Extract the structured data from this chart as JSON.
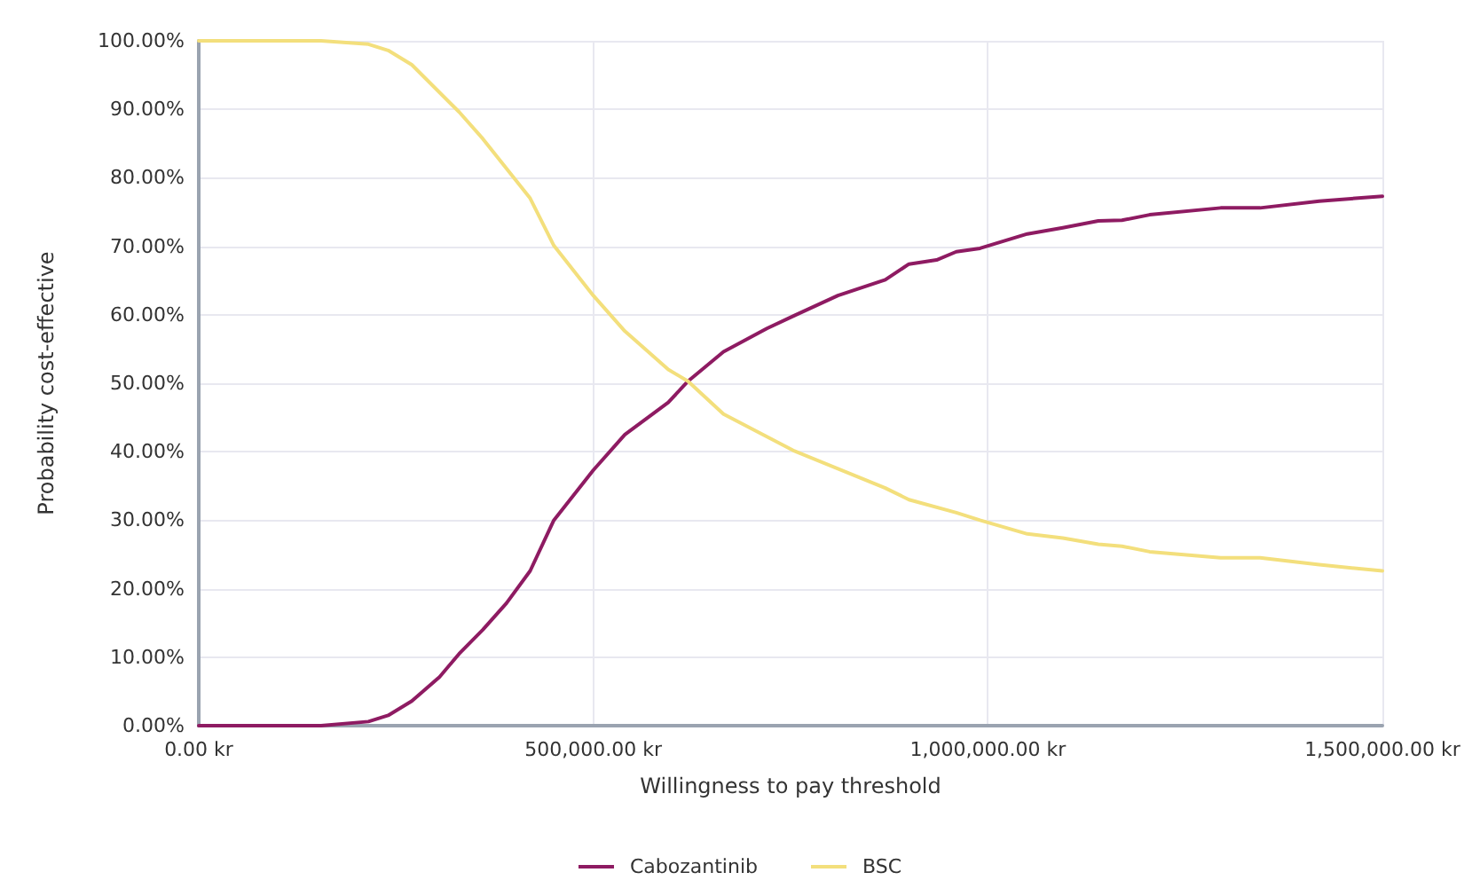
{
  "chart_data": {
    "type": "line",
    "xlabel": "Willingness to pay threshold",
    "ylabel": "Probability cost-effective",
    "series": [
      {
        "name": "Cabozantinib",
        "color": "#8e1b62",
        "x": [
          0,
          50000,
          100000,
          155000,
          215000,
          240000,
          270000,
          305000,
          330000,
          360000,
          390000,
          420000,
          450000,
          500000,
          540000,
          595000,
          620000,
          665000,
          720000,
          755000,
          810000,
          870000,
          900000,
          935000,
          960000,
          990000,
          1050000,
          1095000,
          1140000,
          1170000,
          1205000,
          1295000,
          1345000,
          1420000,
          1500000
        ],
        "values": [
          0,
          0,
          0,
          0,
          0.6,
          1.5,
          3.6,
          7.1,
          10.5,
          14,
          17.9,
          22.6,
          30,
          37.3,
          42.5,
          47.2,
          50.3,
          54.6,
          58,
          59.9,
          62.8,
          65.1,
          67.4,
          68,
          69.2,
          69.7,
          71.8,
          72.7,
          73.7,
          73.8,
          74.6,
          75.6,
          75.6,
          76.6,
          77.3
        ]
      },
      {
        "name": "BSC",
        "color": "#f3df7c",
        "x": [
          0,
          50000,
          100000,
          155000,
          215000,
          240000,
          270000,
          330000,
          360000,
          420000,
          450000,
          500000,
          540000,
          595000,
          620000,
          665000,
          755000,
          870000,
          900000,
          960000,
          990000,
          1050000,
          1095000,
          1140000,
          1170000,
          1205000,
          1295000,
          1345000,
          1420000,
          1500000
        ],
        "values": [
          100,
          100,
          100,
          100,
          99.5,
          98.6,
          96.5,
          89.6,
          85.7,
          77,
          70.1,
          62.8,
          57.6,
          52,
          50.3,
          45.5,
          40.1,
          34.7,
          33,
          31.1,
          30,
          28,
          27.4,
          26.5,
          26.2,
          25.4,
          24.5,
          24.5,
          23.5,
          22.6
        ]
      }
    ],
    "xlim": [
      0,
      1500000
    ],
    "xticks": [
      {
        "value": 0,
        "label": "0.00 kr"
      },
      {
        "value": 500000,
        "label": "500,000.00 kr"
      },
      {
        "value": 1000000,
        "label": "1,000,000.00 kr"
      },
      {
        "value": 1500000,
        "label": "1,500,000.00 kr"
      }
    ],
    "ylim": [
      0,
      100
    ],
    "yticks": [
      {
        "value": 0,
        "label": "0.00%"
      },
      {
        "value": 10,
        "label": "10.00%"
      },
      {
        "value": 20,
        "label": "20.00%"
      },
      {
        "value": 30,
        "label": "30.00%"
      },
      {
        "value": 40,
        "label": "40.00%"
      },
      {
        "value": 50,
        "label": "50.00%"
      },
      {
        "value": 60,
        "label": "60.00%"
      },
      {
        "value": 70,
        "label": "70.00%"
      },
      {
        "value": 80,
        "label": "80.00%"
      },
      {
        "value": 90,
        "label": "90.00%"
      },
      {
        "value": 100,
        "label": "100.00%"
      }
    ],
    "grid": true,
    "legend": "bottom",
    "marker": "none",
    "line_style": "solid"
  }
}
